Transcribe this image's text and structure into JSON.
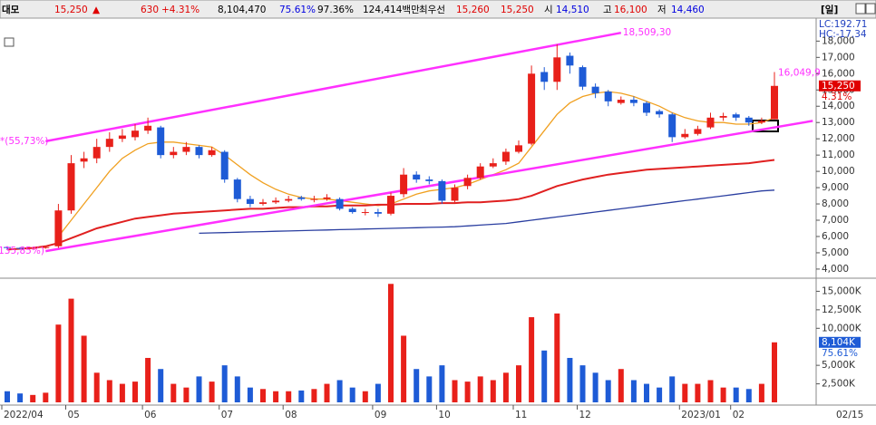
{
  "chart_data": {
    "type": "candlestick",
    "header": [
      {
        "text": "대모",
        "color": "#000000"
      },
      {
        "text": "15,250",
        "color": "#e00000"
      },
      {
        "text": "▲",
        "color": "#e00000"
      },
      {
        "text": "630",
        "color": "#e00000"
      },
      {
        "text": "+4.31%",
        "color": "#e00000"
      },
      {
        "text": "8,104,470",
        "color": "#000000"
      },
      {
        "text": "75.61%",
        "color": "#0000e0"
      },
      {
        "text": "97.36%",
        "color": "#000000"
      },
      {
        "text": "124,414백만",
        "color": "#000000"
      },
      {
        "text": "최우선",
        "color": "#000000"
      },
      {
        "text": "15,260",
        "color": "#e00000"
      },
      {
        "text": "15,250",
        "color": "#e00000"
      },
      {
        "text": "시",
        "color": "#000000"
      },
      {
        "text": "14,510",
        "color": "#0000e0"
      },
      {
        "text": "고",
        "color": "#000000"
      },
      {
        "text": "16,100",
        "color": "#e00000"
      },
      {
        "text": "저",
        "color": "#000000"
      },
      {
        "text": "14,460",
        "color": "#0000e0"
      },
      {
        "text": "[일]",
        "color": "#000000"
      }
    ],
    "categories": [
      "2022/04",
      null,
      null,
      null,
      null,
      "05",
      null,
      null,
      null,
      null,
      null,
      "06",
      null,
      null,
      null,
      null,
      null,
      "07",
      null,
      null,
      null,
      null,
      "08",
      null,
      null,
      null,
      null,
      null,
      null,
      "09",
      null,
      null,
      null,
      null,
      "10",
      null,
      null,
      null,
      null,
      null,
      "11",
      null,
      null,
      null,
      null,
      "12",
      null,
      null,
      null,
      null,
      null,
      null,
      null,
      "2023/01",
      null,
      null,
      null,
      "02",
      null,
      null,
      null
    ],
    "last_date": "02/15",
    "open": [
      5350,
      5300,
      5250,
      5300,
      5400,
      7600,
      10600,
      10800,
      11500,
      12000,
      12100,
      12500,
      12700,
      11000,
      11200,
      11500,
      11000,
      11200,
      9500,
      8300,
      8000,
      8100,
      8200,
      8400,
      8300,
      8300,
      8300,
      7700,
      7500,
      7500,
      7400,
      8600,
      9800,
      9500,
      9400,
      8200,
      9100,
      9600,
      10300,
      10600,
      11200,
      11700,
      16100,
      15500,
      17100,
      16400,
      15200,
      14900,
      14200,
      14400,
      14200,
      13700,
      13500,
      12100,
      12300,
      12700,
      13300,
      13500,
      13300,
      13000,
      13200
    ],
    "high": [
      5400,
      5350,
      5350,
      5400,
      8000,
      11000,
      11200,
      12000,
      12400,
      12600,
      12900,
      13300,
      12800,
      11500,
      11800,
      11600,
      11500,
      11300,
      9600,
      8500,
      8300,
      8400,
      8500,
      8500,
      8500,
      8600,
      8400,
      7800,
      7700,
      7700,
      8700,
      10200,
      10000,
      9700,
      9500,
      9200,
      9800,
      10500,
      10800,
      11400,
      11900,
      16500,
      16400,
      17800,
      17300,
      16500,
      15400,
      15000,
      14600,
      14600,
      14300,
      13800,
      13600,
      12600,
      12800,
      13600,
      13600,
      13600,
      13400,
      13300,
      16100
    ],
    "low": [
      5200,
      5200,
      5200,
      5250,
      5300,
      7400,
      10200,
      10500,
      11200,
      11800,
      11900,
      12300,
      10800,
      10800,
      11000,
      10800,
      10900,
      9300,
      8100,
      7800,
      7900,
      8000,
      8100,
      8200,
      8100,
      8200,
      7600,
      7400,
      7300,
      7200,
      7300,
      8400,
      9300,
      9200,
      8000,
      8100,
      8900,
      9500,
      10200,
      10400,
      11100,
      11600,
      15000,
      15000,
      16000,
      15000,
      14500,
      14000,
      14100,
      14000,
      13400,
      13300,
      11800,
      12000,
      12200,
      12600,
      13100,
      13100,
      12800,
      12900,
      13200
    ],
    "close": [
      5300,
      5250,
      5300,
      5350,
      7600,
      10500,
      10800,
      11500,
      12000,
      12200,
      12500,
      12800,
      11000,
      11200,
      11500,
      11000,
      11300,
      9500,
      8300,
      8000,
      8100,
      8200,
      8300,
      8300,
      8300,
      8400,
      7700,
      7500,
      7500,
      7400,
      8500,
      9800,
      9500,
      9400,
      8200,
      9000,
      9600,
      10300,
      10500,
      11200,
      11600,
      16000,
      15500,
      17000,
      16500,
      15200,
      14800,
      14300,
      14400,
      14200,
      13600,
      13500,
      12100,
      12300,
      12600,
      13300,
      13400,
      13300,
      13000,
      13100,
      15250
    ],
    "up_color": "#e8201a",
    "down_color": "#1e5bd6",
    "series": [
      {
        "color": "#f0a020",
        "values": [
          null,
          null,
          null,
          null,
          6000,
          7000,
          8000,
          9000,
          10000,
          10800,
          11300,
          11700,
          11800,
          11800,
          11700,
          11600,
          11500,
          11000,
          10400,
          9800,
          9300,
          8900,
          8600,
          8400,
          8300,
          8300,
          8200,
          8100,
          8000,
          7900,
          8000,
          8300,
          8600,
          8800,
          8900,
          9000,
          9200,
          9500,
          9800,
          10100,
          10500,
          11500,
          12500,
          13500,
          14200,
          14600,
          14800,
          14900,
          14800,
          14600,
          14300,
          14000,
          13600,
          13300,
          13100,
          13000,
          13000,
          12900,
          12900,
          13000,
          13300
        ]
      },
      {
        "color": "#e02020",
        "values": [
          5200,
          5250,
          5300,
          5400,
          5600,
          5900,
          6200,
          6500,
          6700,
          6900,
          7100,
          7200,
          7300,
          7400,
          7450,
          7500,
          7550,
          7600,
          7650,
          7700,
          7700,
          7750,
          7800,
          7800,
          7850,
          7850,
          7900,
          7900,
          7900,
          7950,
          7950,
          8000,
          8000,
          8000,
          8050,
          8050,
          8100,
          8100,
          8150,
          8200,
          8300,
          8500,
          8800,
          9100,
          9300,
          9500,
          9650,
          9800,
          9900,
          10000,
          10100,
          10150,
          10200,
          10250,
          10300,
          10350,
          10400,
          10450,
          10500,
          10600,
          10700
        ]
      },
      {
        "color": "#2a3ea0",
        "values": [
          null,
          null,
          null,
          null,
          null,
          null,
          null,
          null,
          null,
          null,
          null,
          null,
          null,
          null,
          null,
          6200,
          6220,
          6240,
          6260,
          6280,
          6300,
          6320,
          6340,
          6360,
          6380,
          6400,
          6420,
          6440,
          6460,
          6480,
          6500,
          6520,
          6540,
          6560,
          6580,
          6600,
          6650,
          6700,
          6750,
          6800,
          6900,
          7000,
          7100,
          7200,
          7300,
          7400,
          7500,
          7600,
          7700,
          7800,
          7900,
          8000,
          8100,
          8200,
          8300,
          8400,
          8500,
          8600,
          8700,
          8800,
          8850
        ]
      }
    ],
    "trendlines": [
      {
        "color": "#ff30ff",
        "x": [
          3,
          48
        ],
        "values": [
          11850,
          18509.3
        ],
        "label": "18,509,30",
        "start_label": "*(55,73%)"
      },
      {
        "color": "#ff30ff",
        "x": [
          3,
          63
        ],
        "values": [
          5100,
          13100
        ],
        "start_label": "(135,85%)"
      }
    ],
    "annotation": {
      "label": "16,049,9",
      "x": 60,
      "value": 16049.9,
      "color": "#ff30ff"
    },
    "ylim": [
      3550,
      19300
    ],
    "yticks": [
      {
        "value": 4000,
        "label": "4,000"
      },
      {
        "value": 5000,
        "label": "5,000"
      },
      {
        "value": 6000,
        "label": "6,000"
      },
      {
        "value": 7000,
        "label": "7,000"
      },
      {
        "value": 8000,
        "label": "8,000"
      },
      {
        "value": 9000,
        "label": "9,000"
      },
      {
        "value": 10000,
        "label": "10,000"
      },
      {
        "value": 11000,
        "label": "11,000"
      },
      {
        "value": 12000,
        "label": "12,000"
      },
      {
        "value": 13000,
        "label": "13,000"
      },
      {
        "value": 14000,
        "label": "14,000"
      },
      {
        "value": 15000,
        "label": "15,000"
      },
      {
        "value": 16000,
        "label": "16,000"
      },
      {
        "value": 17000,
        "label": "17,000"
      },
      {
        "value": 18000,
        "label": "18,000"
      }
    ],
    "lc_label": "LC:192.71",
    "hc_label": "HC:-17.34",
    "price_label": {
      "value": 15250,
      "label": "15,250"
    },
    "change_label": "4.31%",
    "volume": {
      "values": [
        1500,
        1200,
        1000,
        1300,
        10500,
        14000,
        9000,
        4000,
        3000,
        2500,
        2800,
        6000,
        4500,
        2500,
        2000,
        3500,
        2800,
        5000,
        3500,
        2000,
        1800,
        1500,
        1500,
        1600,
        1800,
        2500,
        3000,
        2000,
        1500,
        2500,
        16000,
        9000,
        4500,
        3500,
        5000,
        3000,
        2800,
        3500,
        3000,
        4000,
        5000,
        11500,
        7000,
        12000,
        6000,
        5000,
        4000,
        3000,
        4500,
        3000,
        2500,
        2000,
        3500,
        2500,
        2500,
        3000,
        2000,
        2000,
        1800,
        2500,
        8104
      ],
      "ylim": [
        0,
        16400
      ],
      "yticks": [
        {
          "value": 2500,
          "label": "2,500K"
        },
        {
          "value": 5000,
          "label": "5,000K"
        },
        {
          "value": 10000,
          "label": "10,000K"
        },
        {
          "value": 12500,
          "label": "12,500K"
        },
        {
          "value": 15000,
          "label": "15,000K"
        }
      ],
      "current_label": {
        "value": 8104,
        "label": "8,104K"
      },
      "ratio_label": "75.61%"
    }
  }
}
